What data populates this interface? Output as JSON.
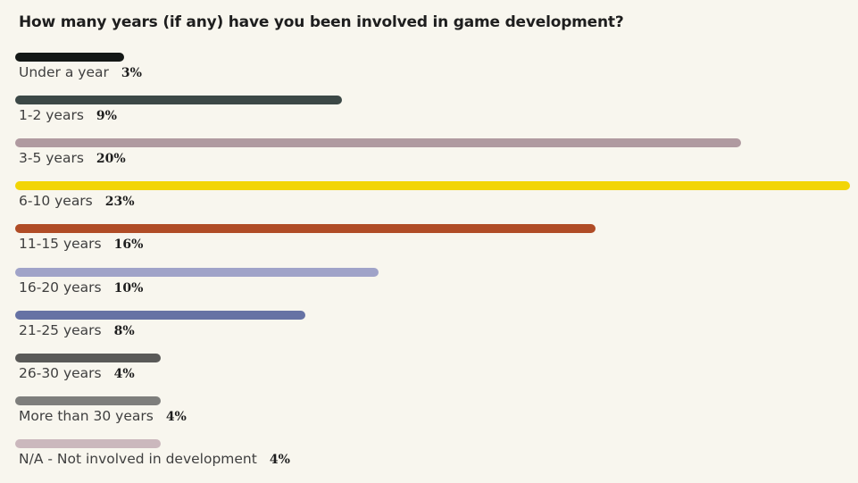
{
  "chart_data": {
    "type": "bar",
    "orientation": "horizontal",
    "title": "How many years (if any) have you been involved in game development?",
    "categories": [
      "Under a year",
      "1-2 years",
      "3-5 years",
      "6-10 years",
      "11-15 years",
      "16-20 years",
      "21-25 years",
      "26-30 years",
      "More than 30 years",
      "N/A - Not involved in development"
    ],
    "values": [
      3,
      9,
      20,
      23,
      16,
      10,
      8,
      4,
      4,
      4
    ],
    "value_labels": [
      "3%",
      "9%",
      "20%",
      "23%",
      "16%",
      "10%",
      "8%",
      "4%",
      "4%",
      "4%"
    ],
    "colors": [
      "#141816",
      "#3c4846",
      "#b09aa0",
      "#f2d506",
      "#b04c26",
      "#a0a3c8",
      "#6672a4",
      "#5a5a58",
      "#7e7e7c",
      "#cbb8bd"
    ],
    "unit": "%",
    "xlim": [
      0,
      23
    ],
    "grid": false,
    "legend": "none"
  }
}
